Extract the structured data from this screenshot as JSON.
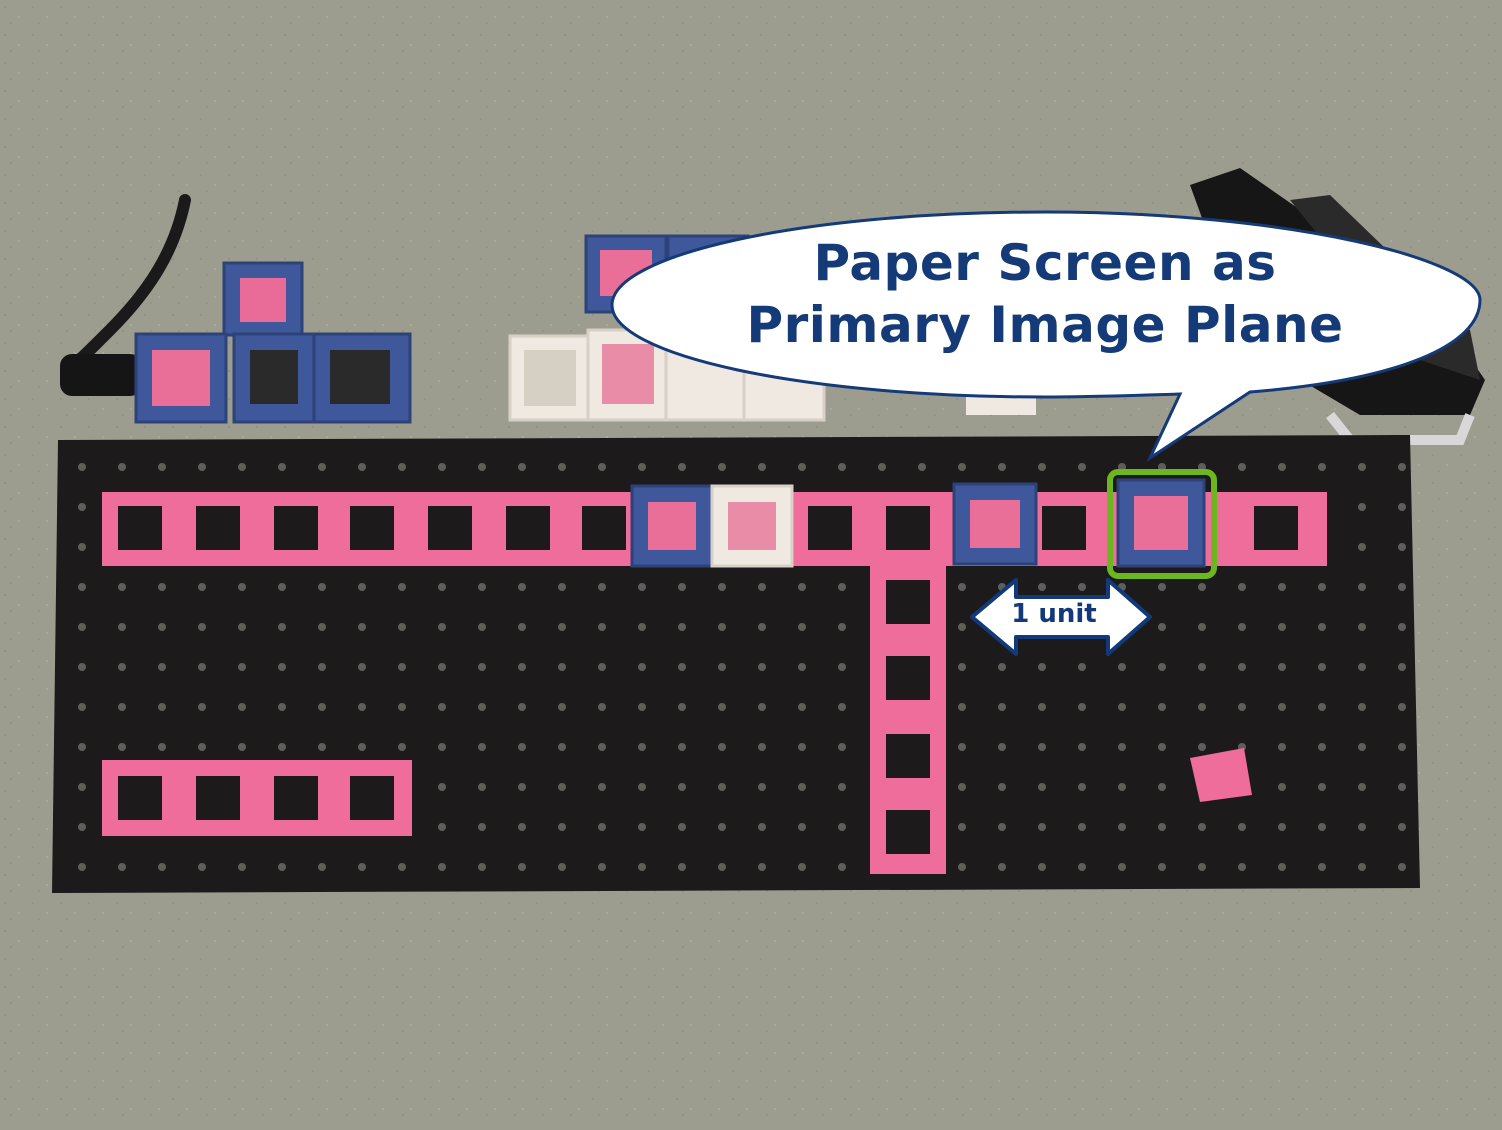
{
  "callout": {
    "line1": "Paper Screen as",
    "line2": "Primary Image Plane"
  },
  "arrow": {
    "label": "1 unit"
  },
  "colors": {
    "background": "#9c9d8e",
    "breadboard": "#1c1a1b",
    "cube_pink": "#ee6d9b",
    "cube_blue": "#3f589c",
    "cube_white": "#efe9e2",
    "highlight": "#6cb61f",
    "callout_border": "#143a78",
    "callout_text": "#143a78"
  }
}
